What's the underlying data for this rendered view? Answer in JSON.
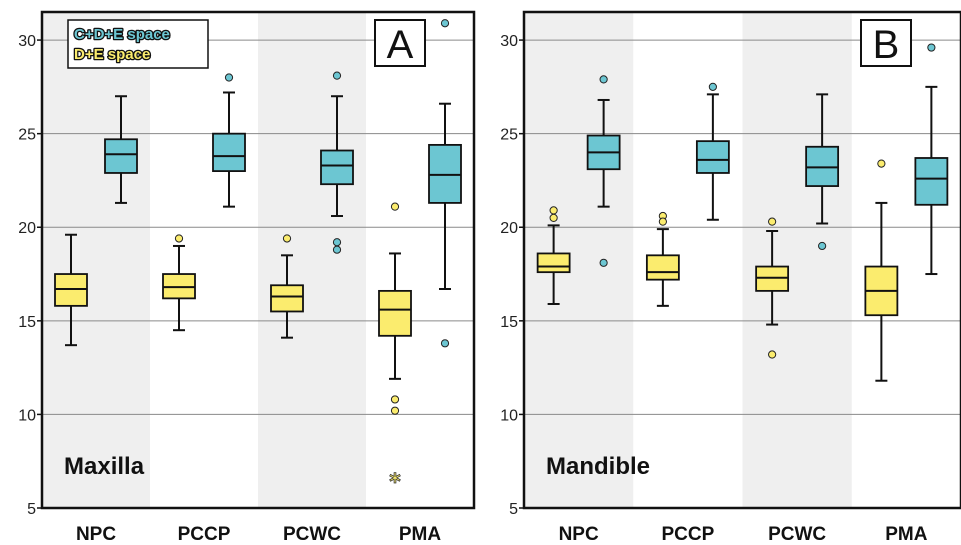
{
  "colors": {
    "cde": "#6cc6d2",
    "de": "#fbec6e",
    "stripe": "#efefef",
    "grid": "#8a8a8a",
    "frame": "#111111"
  },
  "legend": [
    {
      "label": "C+D+E space",
      "color": "#6cc6d2"
    },
    {
      "label": "D+E space",
      "color": "#fbec6e"
    }
  ],
  "chart_data": [
    {
      "type": "box",
      "panel_letter": "A",
      "panel_label": "Maxilla",
      "ylim": [
        5,
        31.5
      ],
      "yticks": [
        "5",
        "10",
        "15",
        "20",
        "25",
        "30"
      ],
      "grid": true,
      "legend_position": "top-left",
      "categories": [
        "NPC",
        "PCCP",
        "PCWC",
        "PMA"
      ],
      "series": [
        {
          "name": "D+E space",
          "boxes": [
            {
              "whisker_low": 13.7,
              "q1": 15.8,
              "median": 16.7,
              "q3": 17.5,
              "whisker_high": 19.6,
              "outliers": [],
              "extremes": []
            },
            {
              "whisker_low": 14.5,
              "q1": 16.2,
              "median": 16.8,
              "q3": 17.5,
              "whisker_high": 19.0,
              "outliers": [
                19.4
              ],
              "extremes": []
            },
            {
              "whisker_low": 14.1,
              "q1": 15.5,
              "median": 16.3,
              "q3": 16.9,
              "whisker_high": 18.5,
              "outliers": [
                19.4
              ],
              "extremes": []
            },
            {
              "whisker_low": 11.9,
              "q1": 14.2,
              "median": 15.6,
              "q3": 16.6,
              "whisker_high": 18.6,
              "outliers": [
                21.1,
                10.8,
                10.2
              ],
              "extremes": [
                6.5
              ]
            }
          ]
        },
        {
          "name": "C+D+E space",
          "boxes": [
            {
              "whisker_low": 21.3,
              "q1": 22.9,
              "median": 23.9,
              "q3": 24.7,
              "whisker_high": 27.0,
              "outliers": [],
              "extremes": []
            },
            {
              "whisker_low": 21.1,
              "q1": 23.0,
              "median": 23.8,
              "q3": 25.0,
              "whisker_high": 27.2,
              "outliers": [
                28.0
              ],
              "extremes": []
            },
            {
              "whisker_low": 20.6,
              "q1": 22.3,
              "median": 23.3,
              "q3": 24.1,
              "whisker_high": 27.0,
              "outliers": [
                28.1,
                19.2,
                18.8
              ],
              "extremes": []
            },
            {
              "whisker_low": 16.7,
              "q1": 21.3,
              "median": 22.8,
              "q3": 24.4,
              "whisker_high": 26.6,
              "outliers": [
                30.9,
                13.8
              ],
              "extremes": []
            }
          ]
        }
      ]
    },
    {
      "type": "box",
      "panel_letter": "B",
      "panel_label": "Mandible",
      "ylim": [
        5,
        31.5
      ],
      "yticks": [
        "5",
        "10",
        "15",
        "20",
        "25",
        "30"
      ],
      "grid": true,
      "categories": [
        "NPC",
        "PCCP",
        "PCWC",
        "PMA"
      ],
      "series": [
        {
          "name": "D+E space",
          "boxes": [
            {
              "whisker_low": 15.9,
              "q1": 17.6,
              "median": 17.9,
              "q3": 18.6,
              "whisker_high": 20.1,
              "outliers": [
                20.9,
                20.5
              ],
              "extremes": []
            },
            {
              "whisker_low": 15.8,
              "q1": 17.2,
              "median": 17.6,
              "q3": 18.5,
              "whisker_high": 19.9,
              "outliers": [
                20.6,
                20.3
              ],
              "extremes": []
            },
            {
              "whisker_low": 14.8,
              "q1": 16.6,
              "median": 17.3,
              "q3": 17.9,
              "whisker_high": 19.8,
              "outliers": [
                20.3,
                13.2
              ],
              "extremes": []
            },
            {
              "whisker_low": 11.8,
              "q1": 15.3,
              "median": 16.6,
              "q3": 17.9,
              "whisker_high": 21.3,
              "outliers": [
                23.4
              ],
              "extremes": []
            }
          ]
        },
        {
          "name": "C+D+E space",
          "boxes": [
            {
              "whisker_low": 21.1,
              "q1": 23.1,
              "median": 24.0,
              "q3": 24.9,
              "whisker_high": 26.8,
              "outliers": [
                27.9,
                18.1
              ],
              "extremes": []
            },
            {
              "whisker_low": 20.4,
              "q1": 22.9,
              "median": 23.6,
              "q3": 24.6,
              "whisker_high": 27.1,
              "outliers": [
                27.5
              ],
              "extremes": []
            },
            {
              "whisker_low": 20.2,
              "q1": 22.2,
              "median": 23.2,
              "q3": 24.3,
              "whisker_high": 27.1,
              "outliers": [
                19.0
              ],
              "extremes": []
            },
            {
              "whisker_low": 17.5,
              "q1": 21.2,
              "median": 22.6,
              "q3": 23.7,
              "whisker_high": 27.5,
              "outliers": [
                29.6
              ],
              "extremes": []
            }
          ]
        }
      ]
    }
  ]
}
